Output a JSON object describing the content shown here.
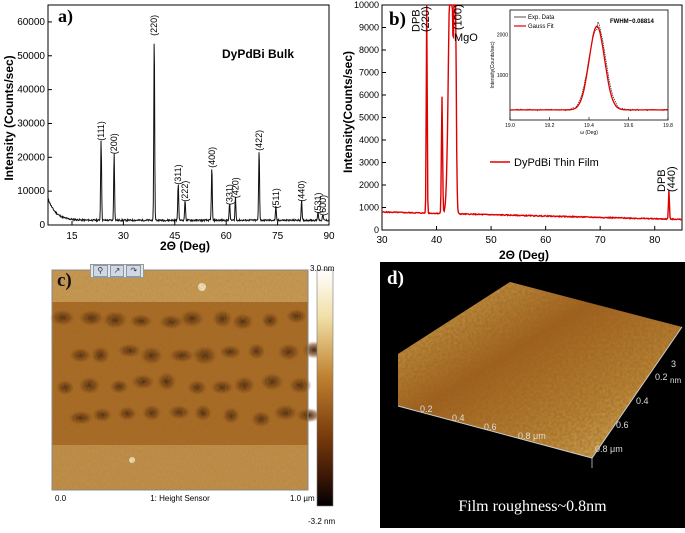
{
  "chart_data": [
    {
      "panel": "a)",
      "type": "line",
      "subtitle": "DyPdBi Bulk",
      "xlabel": "2Θ (Deg)",
      "ylabel": "Intensity (Counts/sec)",
      "xlim": [
        8,
        90
      ],
      "ylim": [
        0,
        65000
      ],
      "x_ticks": [
        15,
        30,
        45,
        60,
        75,
        90
      ],
      "y_ticks": [
        0,
        10000,
        20000,
        30000,
        40000,
        50000,
        60000
      ],
      "peaks": [
        {
          "x": 23.5,
          "y": 24000,
          "label": "(111)"
        },
        {
          "x": 27.3,
          "y": 20000,
          "label": "(200)"
        },
        {
          "x": 39.0,
          "y": 55000,
          "label": "(220)"
        },
        {
          "x": 46.0,
          "y": 11000,
          "label": "(311)"
        },
        {
          "x": 48.0,
          "y": 6000,
          "label": "(222)"
        },
        {
          "x": 55.8,
          "y": 16000,
          "label": "(400)"
        },
        {
          "x": 61.0,
          "y": 5000,
          "label": "(331)"
        },
        {
          "x": 62.7,
          "y": 7000,
          "label": "(420)"
        },
        {
          "x": 69.6,
          "y": 21000,
          "label": "(422)"
        },
        {
          "x": 74.5,
          "y": 4000,
          "label": "(511)"
        },
        {
          "x": 82.0,
          "y": 6000,
          "label": "(440)"
        },
        {
          "x": 86.8,
          "y": 2500,
          "label": "(531)"
        },
        {
          "x": 88.2,
          "y": 1800,
          "label": "(600)"
        }
      ]
    },
    {
      "panel": "b)",
      "type": "line",
      "legend": "DyPdBi Thin Film",
      "xlabel": "2Θ (Deg)",
      "ylabel": "Intensity(Counts/sec)",
      "xlim": [
        30,
        85
      ],
      "ylim": [
        0,
        10000
      ],
      "x_ticks": [
        30,
        40,
        50,
        60,
        70,
        80
      ],
      "y_ticks": [
        0,
        1000,
        2000,
        3000,
        4000,
        5000,
        6000,
        7000,
        8000,
        9000,
        10000
      ],
      "peak_labels": [
        {
          "x": 38.2,
          "lines": [
            "DPB",
            "(220)"
          ]
        },
        {
          "x": 41.5,
          "lines": [
            "(100)",
            "MgO"
          ]
        },
        {
          "x": 82.5,
          "lines": [
            "DPB",
            "(440)"
          ]
        }
      ],
      "inset": {
        "legend": [
          "Exp. Data",
          "Gauss Fit"
        ],
        "annotation": "FWHM~0.08814",
        "xlabel": "ω (Deg)",
        "ylabel": "Intensity(Counts/sec)",
        "xlim": [
          19.0,
          19.8
        ],
        "x_ticks": [
          "19.0",
          "19.2",
          "19.4",
          "19.6",
          "19.8"
        ],
        "y_ticks": [
          "1000",
          "2000"
        ],
        "center": 19.44,
        "peak": 2200
      }
    },
    {
      "panel": "c)",
      "type": "heatmap",
      "scale_max": "3.0 nm",
      "scale_min": "-3.2 nm",
      "x_start": "0.0",
      "x_end": "1.0 µm",
      "channel": "1: Height Sensor"
    },
    {
      "panel": "d)",
      "type": "surface3d",
      "caption": "Film roughness~0.8nm",
      "axis_x_ticks": [
        "0.2",
        "0.4",
        "0.6",
        "0.8 μm"
      ],
      "axis_y_ticks": [
        "0.2",
        "0.4",
        "0.6",
        "0.8 μm"
      ],
      "z_label_top": "3",
      "z_label_unit": "nm"
    }
  ],
  "colors": {
    "bulk_line": "#111111",
    "film_line": "#e00000",
    "fit_line": "#e00000",
    "exp_line": "#222222"
  }
}
